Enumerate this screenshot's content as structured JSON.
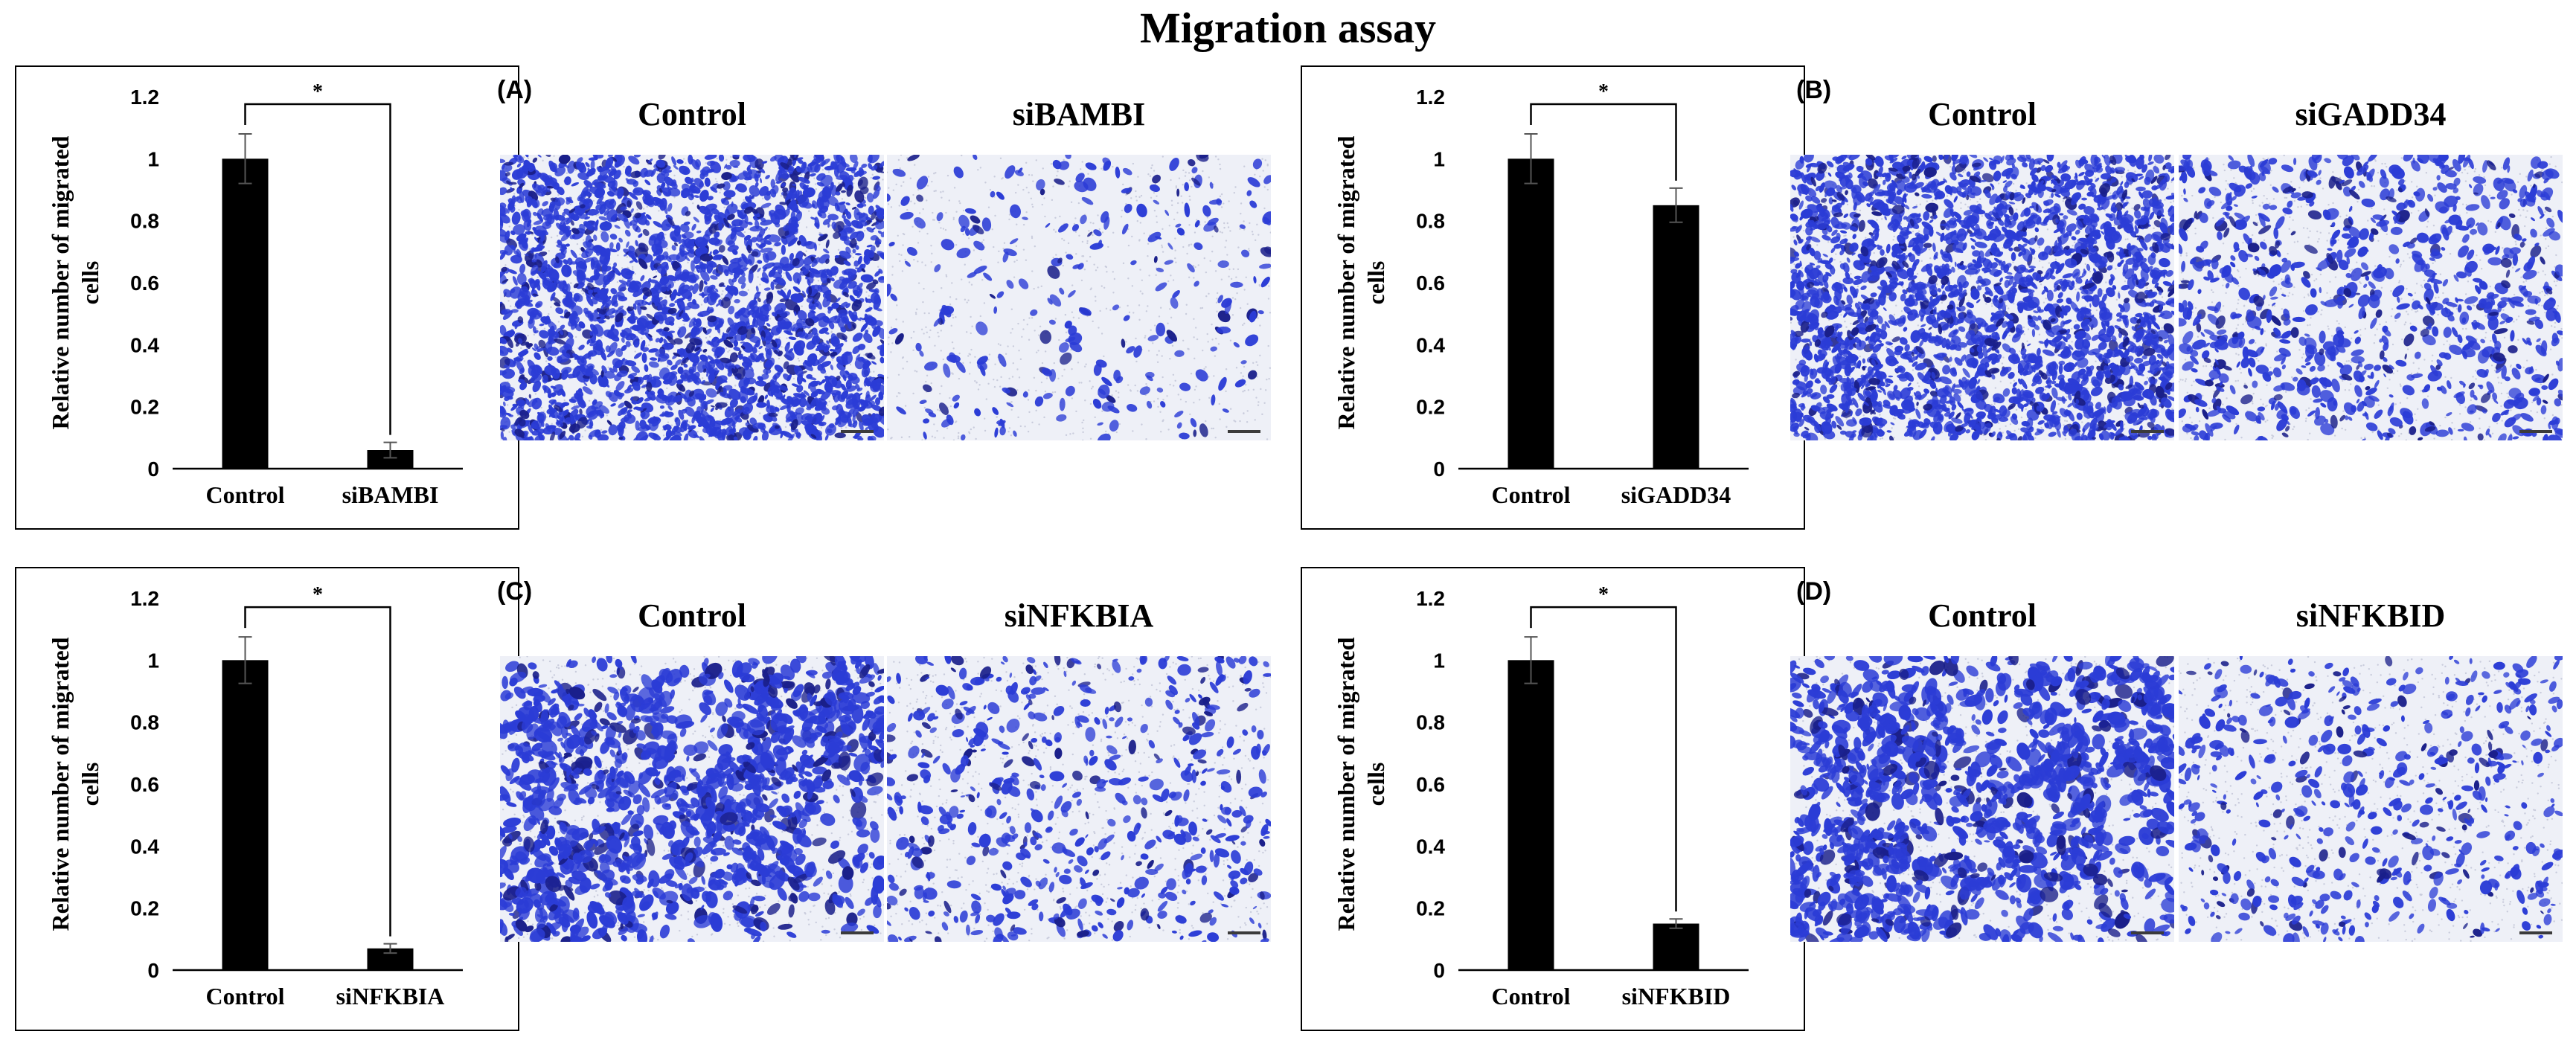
{
  "figure_title": "Migration assay",
  "chart_data": [
    {
      "type": "bar",
      "ylabel": "Relative number of migrated cells",
      "categories": [
        "Control",
        "siBAMBI"
      ],
      "values": [
        1.0,
        0.06
      ],
      "errors": [
        0.08,
        0.025
      ],
      "ylim": [
        0,
        1.2
      ],
      "yticks": [
        "0",
        "0.2",
        "0.4",
        "0.6",
        "0.8",
        "1",
        "1.2"
      ],
      "significance": "*",
      "bar_color": "#000000"
    },
    {
      "type": "bar",
      "ylabel": "Relative number of migrated cells",
      "categories": [
        "Control",
        "siGADD34"
      ],
      "values": [
        1.0,
        0.85
      ],
      "errors": [
        0.08,
        0.055
      ],
      "ylim": [
        0,
        1.2
      ],
      "yticks": [
        "0",
        "0.2",
        "0.4",
        "0.6",
        "0.8",
        "1",
        "1.2"
      ],
      "significance": "*",
      "bar_color": "#000000"
    },
    {
      "type": "bar",
      "ylabel": "Relative number of migrated cells",
      "categories": [
        "Control",
        "siNFKBIA"
      ],
      "values": [
        1.0,
        0.07
      ],
      "errors": [
        0.075,
        0.015
      ],
      "ylim": [
        0,
        1.2
      ],
      "yticks": [
        "0",
        "0.2",
        "0.4",
        "0.6",
        "0.8",
        "1",
        "1.2"
      ],
      "significance": "*",
      "bar_color": "#000000"
    },
    {
      "type": "bar",
      "ylabel": "Relative number of migrated cells",
      "categories": [
        "Control",
        "siNFKBID"
      ],
      "values": [
        1.0,
        0.15
      ],
      "errors": [
        0.075,
        0.015
      ],
      "ylim": [
        0,
        1.2
      ],
      "yticks": [
        "0",
        "0.2",
        "0.4",
        "0.6",
        "0.8",
        "1",
        "1.2"
      ],
      "significance": "*",
      "bar_color": "#000000"
    }
  ],
  "panels": [
    {
      "label": "(A)",
      "images": [
        {
          "title": "Control",
          "density": 0.95,
          "cell": "fine"
        },
        {
          "title": "siBAMBI",
          "density": 0.18,
          "cell": "sparse"
        }
      ]
    },
    {
      "label": "(B)",
      "images": [
        {
          "title": "Control",
          "density": 0.95,
          "cell": "fine"
        },
        {
          "title": "siGADD34",
          "density": 0.65,
          "cell": "medium"
        }
      ]
    },
    {
      "label": "(C)",
      "images": [
        {
          "title": "Control",
          "density": 0.7,
          "cell": "clumped"
        },
        {
          "title": "siNFKBIA",
          "density": 0.4,
          "cell": "medium"
        }
      ]
    },
    {
      "label": "(D)",
      "images": [
        {
          "title": "Control",
          "density": 0.7,
          "cell": "clumped"
        },
        {
          "title": "siNFKBID",
          "density": 0.38,
          "cell": "medium"
        }
      ]
    }
  ],
  "colors": {
    "stain": "#2b3cd6",
    "stain_dark": "#1a1f8a",
    "background": "#eef0f7"
  }
}
